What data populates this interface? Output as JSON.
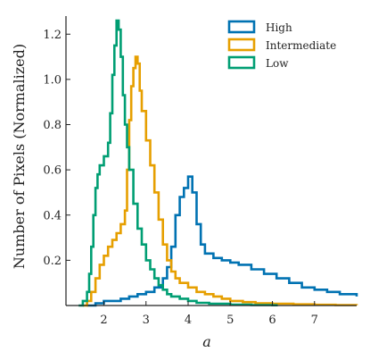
{
  "chart_data": {
    "type": "line",
    "style": "step histogram",
    "xlabel": "a",
    "ylabel": "Number of Pixels (Normalized)",
    "xlim": [
      1.1,
      8.0
    ],
    "ylim": [
      0.0,
      1.28
    ],
    "xticks": [
      2,
      3,
      4,
      5,
      6,
      7
    ],
    "yticks": [
      0.2,
      0.4,
      0.6,
      0.8,
      1.0,
      1.2
    ],
    "ytick_labels": [
      "0.2",
      "0.4",
      "0.6",
      "0.8",
      "1.0",
      "1.2"
    ],
    "grid": false,
    "legend_position": "top-right",
    "series": [
      {
        "name": "High",
        "color": "#0072B2",
        "x": [
          1.6,
          1.8,
          2.0,
          2.2,
          2.4,
          2.6,
          2.8,
          3.0,
          3.2,
          3.4,
          3.5,
          3.6,
          3.7,
          3.8,
          3.9,
          4.0,
          4.1,
          4.2,
          4.3,
          4.4,
          4.6,
          4.8,
          5.0,
          5.2,
          5.5,
          5.8,
          6.1,
          6.4,
          6.7,
          7.0,
          7.3,
          7.6,
          8.0
        ],
        "y": [
          0.0,
          0.01,
          0.02,
          0.02,
          0.03,
          0.04,
          0.05,
          0.06,
          0.08,
          0.12,
          0.17,
          0.26,
          0.4,
          0.48,
          0.52,
          0.57,
          0.5,
          0.36,
          0.27,
          0.23,
          0.21,
          0.2,
          0.19,
          0.18,
          0.16,
          0.14,
          0.12,
          0.1,
          0.08,
          0.07,
          0.06,
          0.05,
          0.04
        ]
      },
      {
        "name": "Intermediate",
        "color": "#E69F00",
        "x": [
          1.5,
          1.6,
          1.7,
          1.8,
          1.9,
          2.0,
          2.1,
          2.2,
          2.3,
          2.4,
          2.5,
          2.55,
          2.6,
          2.65,
          2.7,
          2.75,
          2.8,
          2.85,
          2.9,
          3.0,
          3.1,
          3.2,
          3.3,
          3.4,
          3.5,
          3.6,
          3.7,
          3.8,
          4.0,
          4.2,
          4.4,
          4.6,
          4.8,
          5.0,
          5.3,
          5.6,
          6.0,
          6.5,
          7.0,
          7.5,
          8.0
        ],
        "y": [
          0.0,
          0.02,
          0.06,
          0.12,
          0.18,
          0.22,
          0.26,
          0.29,
          0.32,
          0.36,
          0.42,
          0.6,
          0.82,
          0.97,
          1.05,
          1.1,
          1.07,
          0.95,
          0.86,
          0.73,
          0.62,
          0.5,
          0.38,
          0.27,
          0.2,
          0.15,
          0.12,
          0.1,
          0.08,
          0.06,
          0.05,
          0.04,
          0.03,
          0.02,
          0.015,
          0.01,
          0.008,
          0.005,
          0.003,
          0.002,
          0.001
        ]
      },
      {
        "name": "Low",
        "color": "#009E73",
        "x": [
          1.4,
          1.5,
          1.6,
          1.65,
          1.7,
          1.75,
          1.8,
          1.85,
          1.9,
          2.0,
          2.1,
          2.15,
          2.2,
          2.25,
          2.3,
          2.35,
          2.4,
          2.45,
          2.5,
          2.55,
          2.6,
          2.7,
          2.8,
          2.9,
          3.0,
          3.1,
          3.2,
          3.3,
          3.4,
          3.5,
          3.6,
          3.8,
          4.0,
          4.2,
          4.5,
          5.0,
          5.5,
          6.0
        ],
        "y": [
          0.0,
          0.02,
          0.06,
          0.14,
          0.26,
          0.4,
          0.52,
          0.58,
          0.62,
          0.66,
          0.72,
          0.85,
          1.02,
          1.15,
          1.26,
          1.22,
          1.1,
          0.93,
          0.8,
          0.7,
          0.6,
          0.45,
          0.34,
          0.27,
          0.2,
          0.16,
          0.12,
          0.09,
          0.07,
          0.05,
          0.04,
          0.03,
          0.02,
          0.012,
          0.008,
          0.004,
          0.002,
          0.001
        ]
      }
    ]
  }
}
